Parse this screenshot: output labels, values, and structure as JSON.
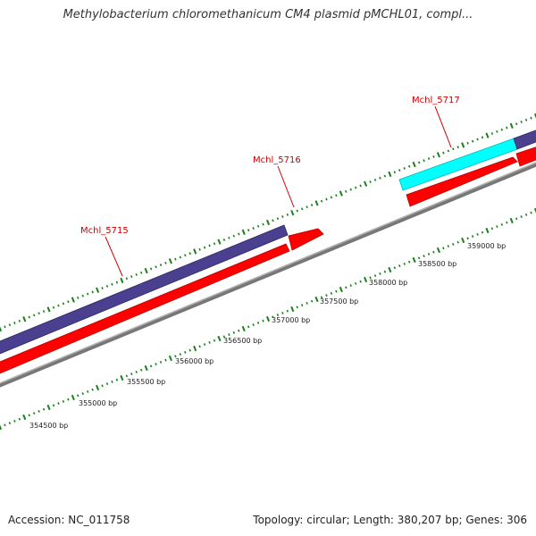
{
  "title": "Methylobacterium chloromethanicum CM4 plasmid pMCHL01, compl...",
  "footer": {
    "accession": "Accession: NC_011758",
    "summary": "Topology: circular; Length: 380,207 bp; Genes: 306"
  },
  "colors": {
    "forward_gene": "#4b3f8f",
    "cds": "#ff0000",
    "highlight_gene": "#00ffff",
    "backbone": "#888888",
    "ticks": "#1a7f1a",
    "gene_label": "#cc0000"
  },
  "genes": [
    {
      "name": "Mchl_5715",
      "track": "forward",
      "color": "purple"
    },
    {
      "name": "Mchl_5716",
      "track": "cds",
      "color": "red"
    },
    {
      "name": "Mchl_5717",
      "track": "forward",
      "color": "cyan"
    }
  ],
  "scale_labels": [
    "354500 bp",
    "355000 bp",
    "355500 bp",
    "356000 bp",
    "356500 bp",
    "357000 bp",
    "357500 bp",
    "358000 bp",
    "358500 bp",
    "359000 bp"
  ]
}
